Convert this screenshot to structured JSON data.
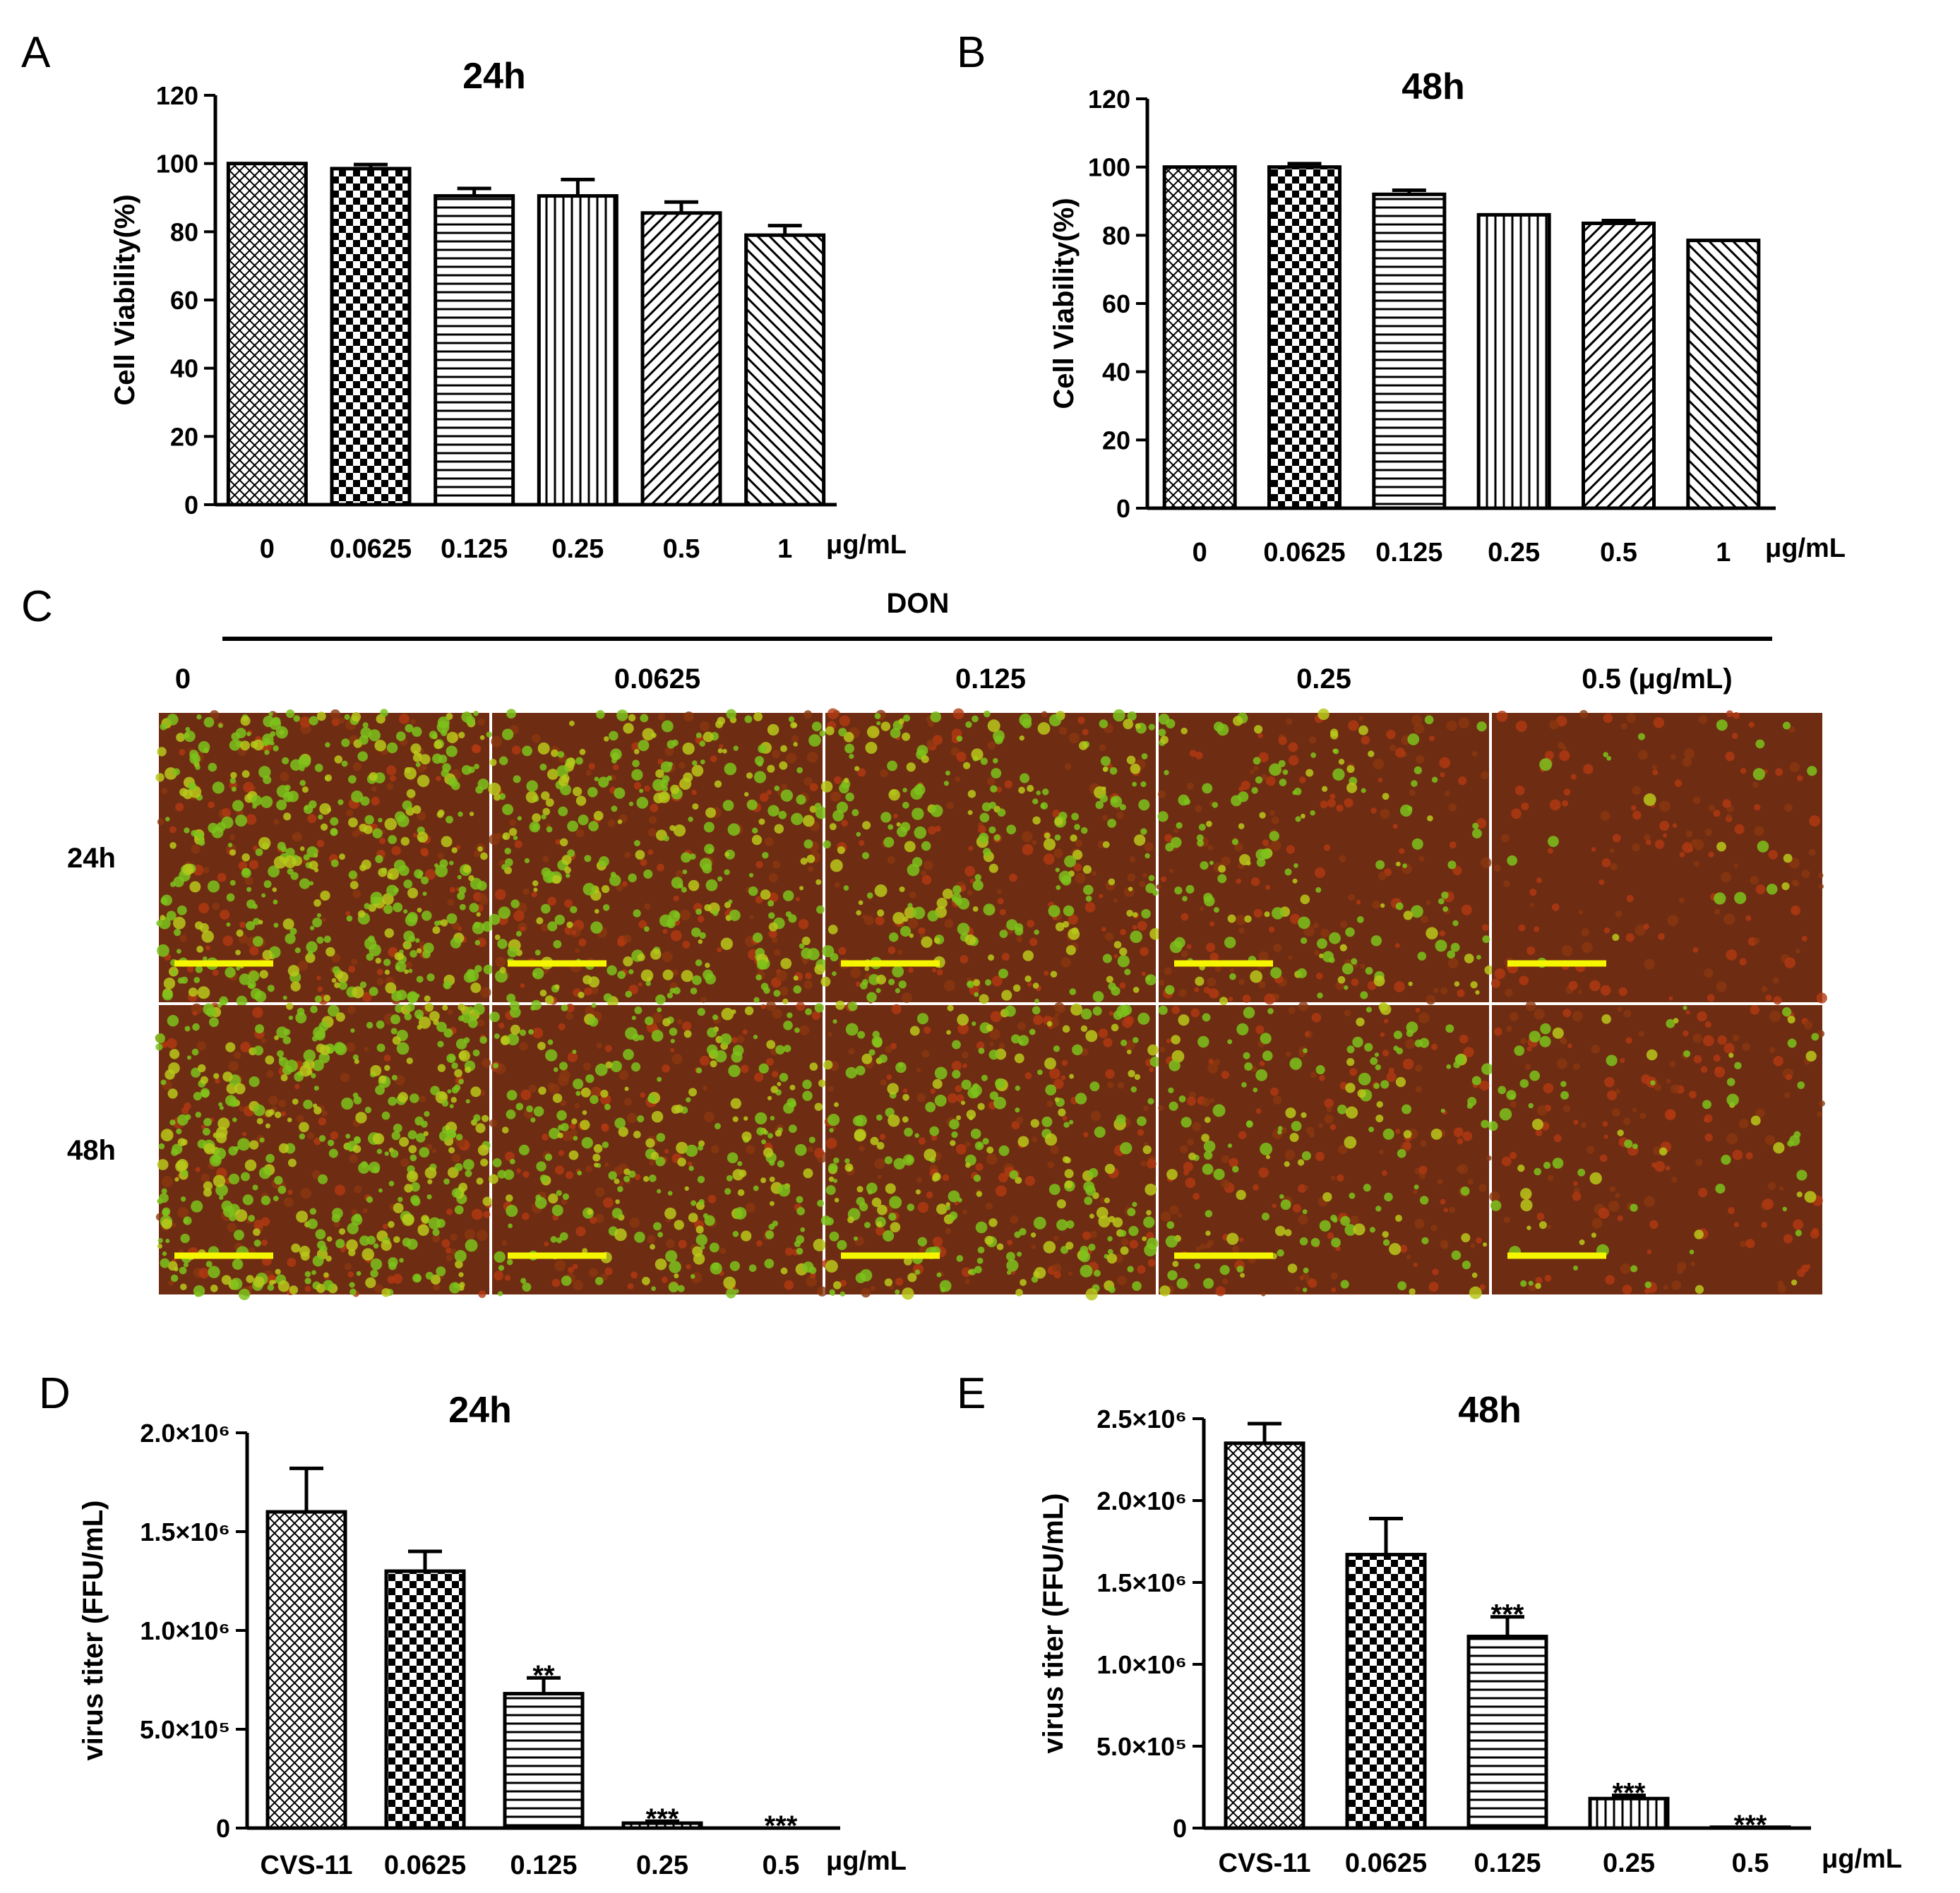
{
  "panel_letters": {
    "A": "A",
    "B": "B",
    "C": "C",
    "D": "D",
    "E": "E"
  },
  "chart_data": [
    {
      "id": "A",
      "type": "bar",
      "title": "24h",
      "ylabel": "Cell  Viability(%)",
      "xlabel": "",
      "unit": "μg/mL",
      "categories": [
        "0",
        "0.0625",
        "0.125",
        "0.25",
        "0.5",
        "1"
      ],
      "values": [
        100,
        98.5,
        90.5,
        90.5,
        85.5,
        79
      ],
      "errors": [
        0,
        1.2,
        2.2,
        4.8,
        3.2,
        2.8
      ],
      "ylim": [
        0,
        120
      ],
      "yticks": [
        0,
        20,
        40,
        60,
        80,
        100,
        120
      ],
      "ytick_labels": [
        "0",
        "20",
        "40",
        "60",
        "80",
        "100",
        "120"
      ],
      "annotations": [
        "",
        "",
        "",
        "",
        "",
        ""
      ],
      "grid": false
    },
    {
      "id": "B",
      "type": "bar",
      "title": "48h",
      "ylabel": "Cell  Viability(%)",
      "xlabel": "",
      "unit": "μg/mL",
      "categories": [
        "0",
        "0.0625",
        "0.125",
        "0.25",
        "0.5",
        "1"
      ],
      "values": [
        100,
        100,
        92,
        86,
        83.5,
        78.5
      ],
      "errors": [
        0,
        1.0,
        1.2,
        0,
        0.8,
        0
      ],
      "ylim": [
        0,
        120
      ],
      "yticks": [
        0,
        20,
        40,
        60,
        80,
        100,
        120
      ],
      "ytick_labels": [
        "0",
        "20",
        "40",
        "60",
        "80",
        "100",
        "120"
      ],
      "annotations": [
        "",
        "",
        "",
        "",
        "",
        ""
      ],
      "grid": false
    },
    {
      "id": "D",
      "type": "bar",
      "title": "24h",
      "ylabel": "virus titer (FFU/mL)",
      "xlabel": "",
      "unit": "μg/mL",
      "categories": [
        "CVS-11",
        "0.0625",
        "0.125",
        "0.25",
        "0.5"
      ],
      "values": [
        1600000,
        1300000,
        680000,
        25000,
        0
      ],
      "errors": [
        220000,
        100000,
        80000,
        10000,
        0
      ],
      "ylim": [
        0,
        2000000
      ],
      "yticks": [
        0,
        500000,
        1000000,
        1500000,
        2000000
      ],
      "ytick_labels": [
        "0",
        "5.0×10⁵",
        "1.0×10⁶",
        "1.5×10⁶",
        "2.0×10⁶"
      ],
      "annotations": [
        "",
        "",
        "**",
        "***",
        "***"
      ],
      "grid": false
    },
    {
      "id": "E",
      "type": "bar",
      "title": "48h",
      "ylabel": "virus titer (FFU/mL)",
      "xlabel": "",
      "unit": "μg/mL",
      "categories": [
        "CVS-11",
        "0.0625",
        "0.125",
        "0.25",
        "0.5"
      ],
      "values": [
        2350000,
        1670000,
        1170000,
        180000,
        5000
      ],
      "errors": [
        120000,
        220000,
        120000,
        20000,
        0
      ],
      "ylim": [
        0,
        2500000
      ],
      "yticks": [
        0,
        500000,
        1000000,
        1500000,
        2000000,
        2500000
      ],
      "ytick_labels": [
        "0",
        "5.0×10⁵",
        "1.0×10⁶",
        "1.5×10⁶",
        "2.0×10⁶",
        "2.5×10⁶"
      ],
      "annotations": [
        "",
        "",
        "***",
        "***",
        "***"
      ],
      "grid": false
    }
  ],
  "micrographs": {
    "treatment": "DON",
    "columns": [
      "0",
      "0.0625",
      "0.125",
      "0.25",
      "0.5 (μg/mL)"
    ],
    "rows": [
      "24h",
      "48h"
    ],
    "green_level": [
      [
        0.85,
        0.62,
        0.5,
        0.3,
        0.04
      ],
      [
        0.85,
        0.55,
        0.55,
        0.3,
        0.15
      ]
    ],
    "scale_bar_color": "#f5f500"
  },
  "colors": {
    "axis": "#000000",
    "bar_fill": "#ffffff",
    "scale_bar": "#f5f500"
  }
}
